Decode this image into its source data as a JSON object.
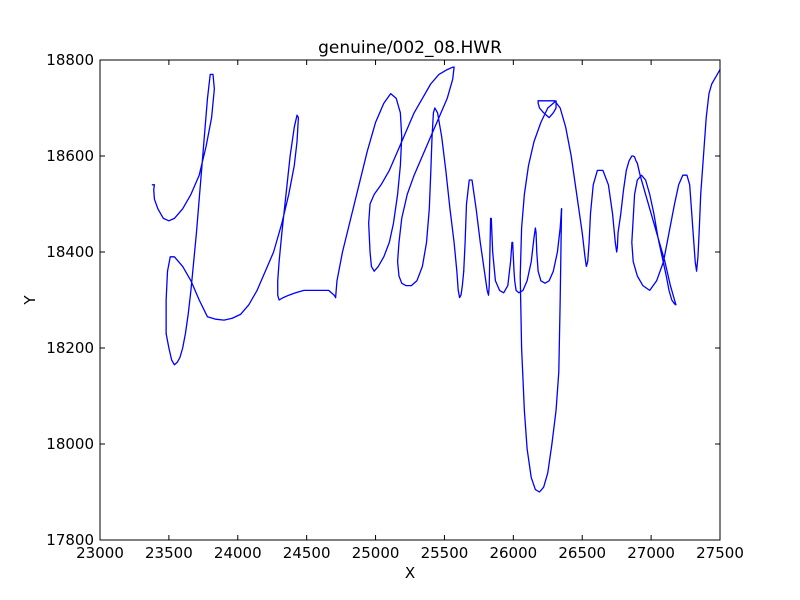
{
  "chart_data": {
    "type": "line",
    "title": "genuine/002_08.HWR",
    "xlabel": "X",
    "ylabel": "Y",
    "xlim": [
      23000,
      27500
    ],
    "ylim": [
      17800,
      18800
    ],
    "xticks": [
      23000,
      23500,
      24000,
      24500,
      25000,
      25500,
      26000,
      26500,
      27000,
      27500
    ],
    "yticks": [
      17800,
      18000,
      18200,
      18400,
      18600,
      18800
    ],
    "xtick_labels": [
      "23000",
      "23500",
      "24000",
      "24500",
      "25000",
      "25500",
      "26000",
      "26500",
      "27000",
      "27500"
    ],
    "ytick_labels": [
      "17800",
      "18000",
      "18200",
      "18400",
      "18600",
      "18800"
    ],
    "grid": false,
    "line_color": "#0000ff",
    "series": [
      {
        "x": [
          23380,
          23395,
          23390,
          23395,
          23420,
          23460,
          23500,
          23540,
          23600,
          23660,
          23720,
          23770,
          23810,
          23830,
          23820,
          23800,
          23780,
          23760,
          23740,
          23720,
          23700,
          23680,
          23660,
          23640,
          23620,
          23600,
          23580,
          23560,
          23540,
          23520,
          23500,
          23480
        ],
        "y": [
          18540,
          18540,
          18530,
          18510,
          18490,
          18470,
          18465,
          18470,
          18490,
          18520,
          18560,
          18620,
          18680,
          18740,
          18770,
          18770,
          18720,
          18650,
          18580,
          18510,
          18440,
          18380,
          18320,
          18270,
          18230,
          18200,
          18180,
          18170,
          18165,
          18175,
          18200,
          18230
        ]
      },
      {
        "x": [
          23480,
          23480,
          23490,
          23510,
          23540,
          23600,
          23660,
          23720,
          23780,
          23840,
          23900,
          23960,
          24020,
          24080,
          24140,
          24200,
          24260,
          24320,
          24370,
          24410,
          24430,
          24440,
          24430,
          24410,
          24380,
          24350,
          24320,
          24300,
          24290,
          24290,
          24300,
          24330,
          24370,
          24420,
          24480,
          24540,
          24600,
          24660,
          24700,
          24710
        ],
        "y": [
          18230,
          18300,
          18360,
          18390,
          18390,
          18370,
          18340,
          18300,
          18265,
          18260,
          18258,
          18262,
          18270,
          18290,
          18320,
          18360,
          18400,
          18460,
          18520,
          18580,
          18630,
          18680,
          18685,
          18660,
          18600,
          18520,
          18440,
          18380,
          18340,
          18310,
          18300,
          18305,
          18310,
          18315,
          18320,
          18320,
          18320,
          18320,
          18310,
          18305
        ]
      },
      {
        "x": [
          24710,
          24720,
          24760,
          24820,
          24880,
          24940,
          25000,
          25060,
          25110,
          25150,
          25180,
          25190,
          25180,
          25160,
          25130,
          25100,
          25060,
          25020,
          24990,
          24970,
          24960,
          24950,
          24960,
          24990,
          25040,
          25100,
          25160,
          25220,
          25280,
          25340,
          25400,
          25460,
          25520,
          25560,
          25570
        ],
        "y": [
          18305,
          18340,
          18400,
          18470,
          18540,
          18610,
          18670,
          18710,
          18730,
          18720,
          18690,
          18640,
          18580,
          18520,
          18460,
          18420,
          18390,
          18370,
          18360,
          18370,
          18400,
          18460,
          18500,
          18520,
          18540,
          18570,
          18610,
          18650,
          18690,
          18720,
          18750,
          18770,
          18780,
          18785,
          18785
        ]
      },
      {
        "x": [
          25570,
          25560,
          25520,
          25460,
          25400,
          25340,
          25280,
          25230,
          25190,
          25170,
          25160,
          25170,
          25190,
          25220,
          25260,
          25300,
          25340,
          25370,
          25390,
          25400,
          25410,
          25420,
          25430,
          25450,
          25480,
          25510,
          25540,
          25570,
          25590,
          25600,
          25610,
          25620,
          25630,
          25640
        ],
        "y": [
          18785,
          18760,
          18720,
          18680,
          18640,
          18600,
          18560,
          18520,
          18470,
          18420,
          18380,
          18350,
          18335,
          18330,
          18330,
          18340,
          18370,
          18420,
          18490,
          18560,
          18640,
          18690,
          18700,
          18690,
          18640,
          18570,
          18490,
          18420,
          18360,
          18320,
          18305,
          18310,
          18330,
          18360
        ]
      },
      {
        "x": [
          25640,
          25650,
          25660,
          25680,
          25700,
          25730,
          25760,
          25790,
          25810,
          25820,
          25825,
          25830,
          25835,
          25840,
          25850,
          25870,
          25900,
          25930,
          25960,
          25980,
          25990,
          25995,
          26000,
          26005,
          26010,
          26020,
          26040,
          26070,
          26100,
          26130,
          26150,
          26160,
          26165,
          26170,
          26180,
          26200,
          26230,
          26260,
          26290,
          26320,
          26340,
          26350
        ],
        "y": [
          18360,
          18420,
          18500,
          18550,
          18550,
          18490,
          18420,
          18360,
          18320,
          18310,
          18330,
          18400,
          18470,
          18470,
          18400,
          18340,
          18320,
          18315,
          18330,
          18380,
          18420,
          18420,
          18390,
          18360,
          18340,
          18320,
          18315,
          18320,
          18340,
          18380,
          18430,
          18450,
          18440,
          18400,
          18360,
          18340,
          18335,
          18340,
          18360,
          18400,
          18450,
          18490
        ]
      },
      {
        "x": [
          26350,
          26340,
          26330,
          26310,
          26280,
          26250,
          26220,
          26190,
          26160,
          26130,
          26100,
          26080,
          26060,
          26050,
          26060,
          26080,
          26110,
          26150,
          26200,
          26250,
          26290,
          26310,
          26310,
          26290,
          26260,
          26220,
          26190,
          26180,
          26180
        ],
        "y": [
          18490,
          18300,
          18150,
          18070,
          18000,
          17940,
          17910,
          17900,
          17905,
          17930,
          17990,
          18070,
          18200,
          18350,
          18450,
          18520,
          18580,
          18630,
          18670,
          18700,
          18710,
          18715,
          18700,
          18690,
          18680,
          18690,
          18700,
          18710,
          18715
        ]
      },
      {
        "x": [
          26180,
          26220,
          26260,
          26300,
          26340,
          26380,
          26420,
          26460,
          26500,
          26520,
          26530,
          26540,
          26550,
          26560,
          26580,
          26610,
          26650,
          26690,
          26720,
          26740,
          26750,
          26755,
          26760,
          26780,
          26800,
          26820,
          26840,
          26860,
          26870,
          26880,
          26890,
          26900
        ],
        "y": [
          18715,
          18715,
          18715,
          18715,
          18700,
          18660,
          18600,
          18520,
          18440,
          18390,
          18370,
          18380,
          18420,
          18480,
          18540,
          18570,
          18570,
          18540,
          18480,
          18420,
          18400,
          18410,
          18440,
          18480,
          18530,
          18570,
          18590,
          18600,
          18600,
          18598,
          18590,
          18585
        ]
      },
      {
        "x": [
          26900,
          26920,
          26960,
          27000,
          27050,
          27100,
          27140,
          27170,
          27180,
          27170,
          27150,
          27130,
          27110,
          27080,
          27050,
          27020,
          26990,
          26960,
          26930,
          26900,
          26880,
          26870,
          26860,
          26870,
          26900,
          26940,
          26990,
          27040,
          27090,
          27130,
          27170,
          27200,
          27230,
          27260,
          27280,
          27290,
          27300,
          27310,
          27320,
          27330,
          27340,
          27350,
          27360,
          27380,
          27400,
          27420,
          27440,
          27460,
          27480,
          27500
        ],
        "y": [
          18585,
          18560,
          18520,
          18480,
          18430,
          18380,
          18330,
          18300,
          18290,
          18292,
          18300,
          18320,
          18350,
          18390,
          18430,
          18480,
          18520,
          18550,
          18560,
          18550,
          18520,
          18470,
          18420,
          18380,
          18350,
          18330,
          18320,
          18340,
          18380,
          18440,
          18500,
          18540,
          18560,
          18560,
          18540,
          18500,
          18460,
          18420,
          18380,
          18360,
          18390,
          18450,
          18520,
          18600,
          18680,
          18730,
          18750,
          18760,
          18770,
          18780
        ]
      }
    ]
  }
}
